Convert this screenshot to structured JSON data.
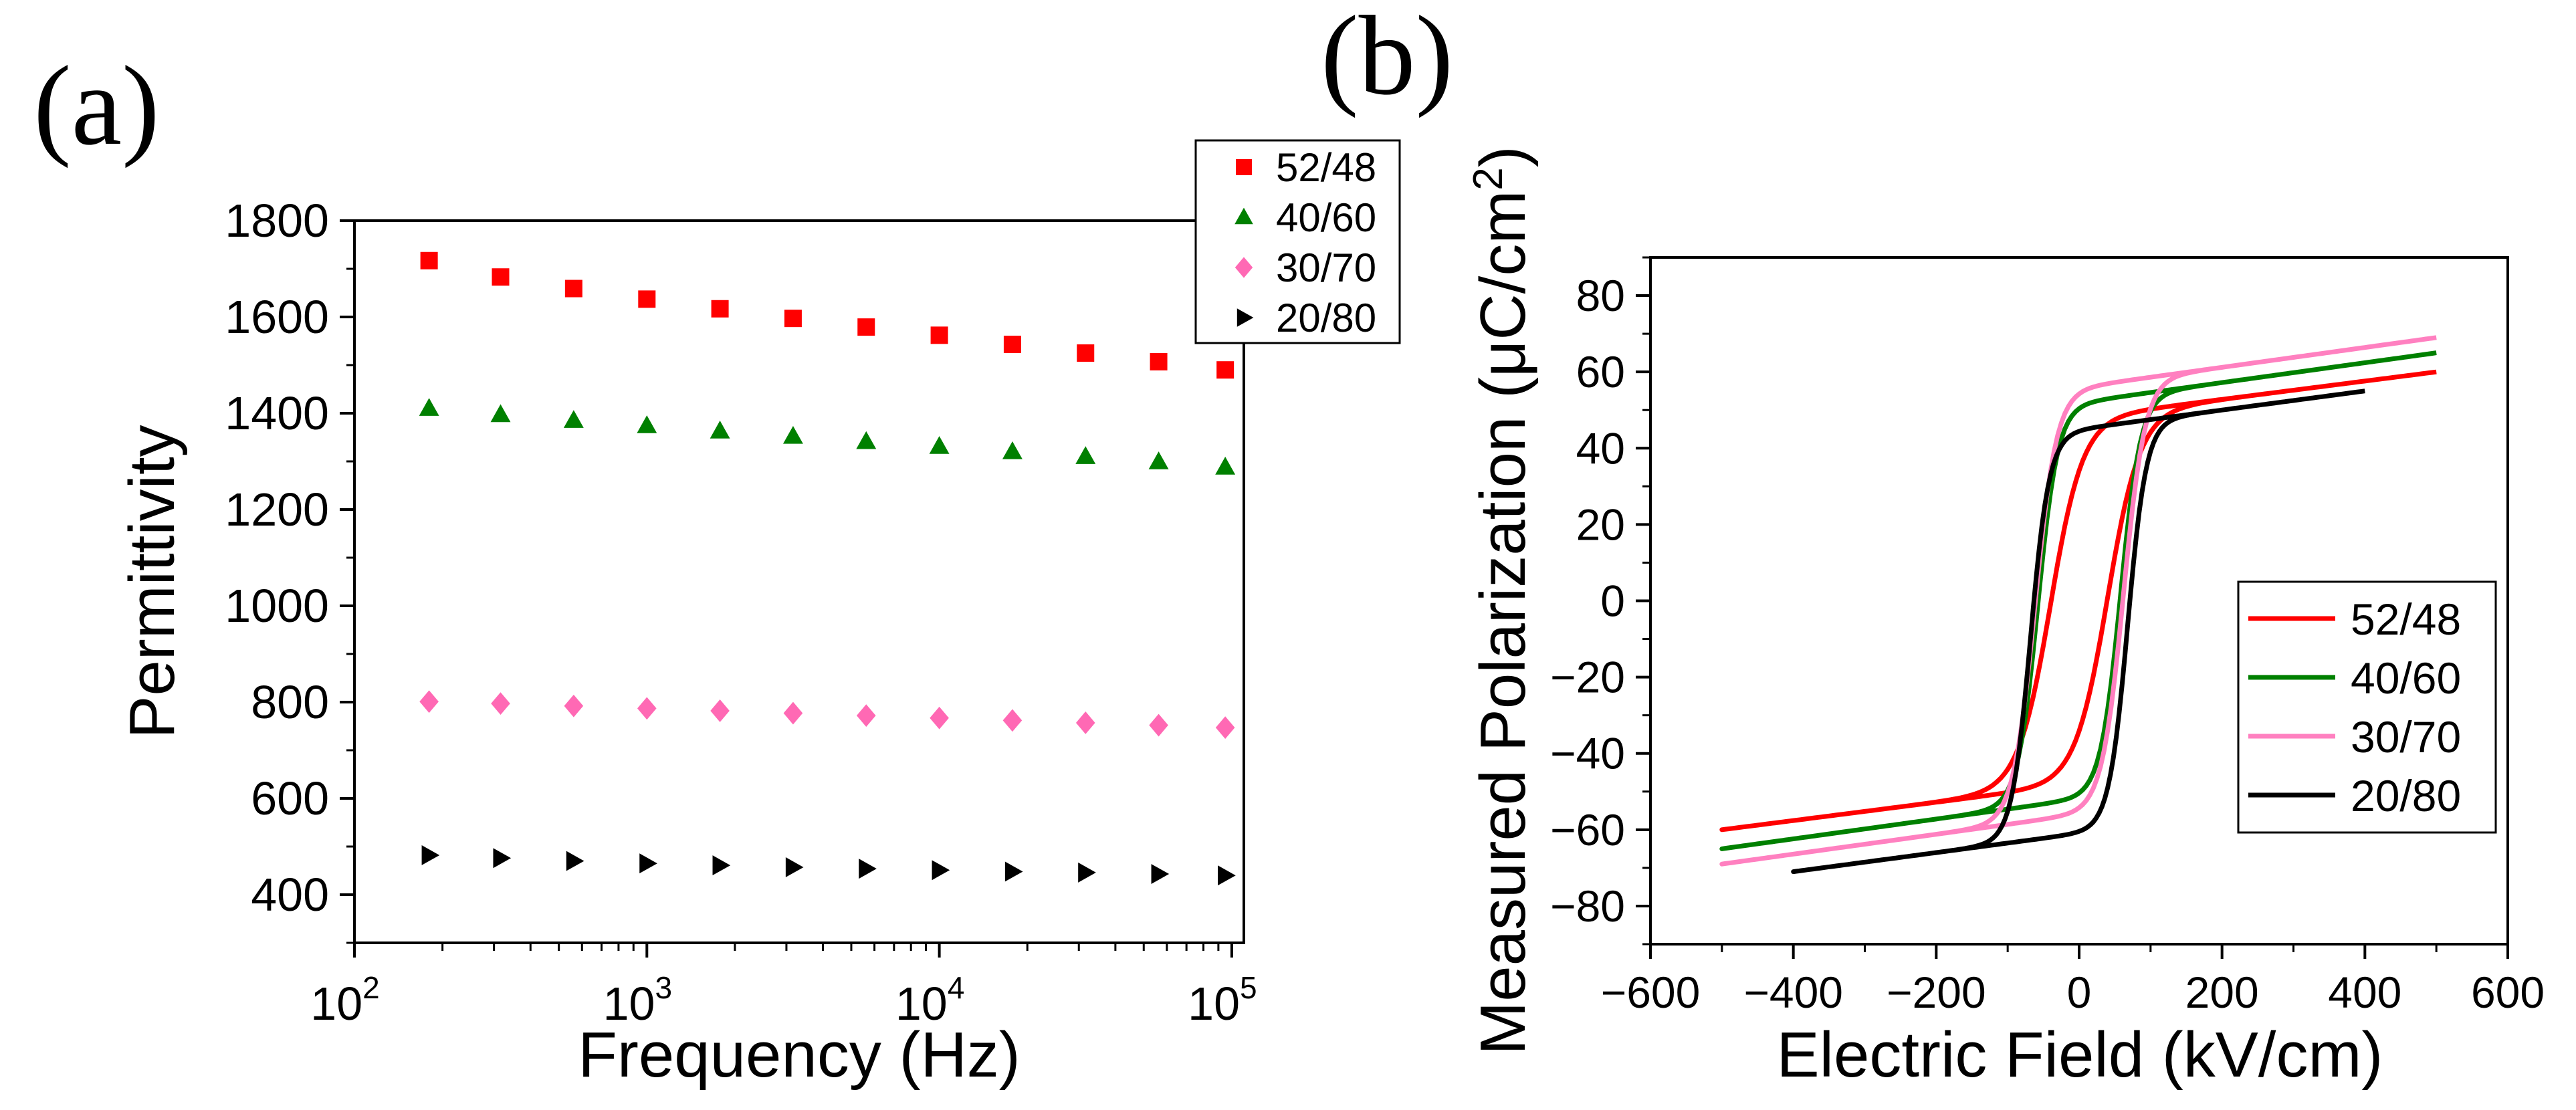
{
  "chart_data": [
    {
      "panel_label": "(a)",
      "type": "scatter",
      "xscale": "log",
      "xlabel": "Frequency (Hz)",
      "ylabel": "Permittivity",
      "xlim": [
        100,
        110000
      ],
      "ylim": [
        300,
        1800
      ],
      "xticks": [
        100,
        1000,
        10000,
        100000
      ],
      "xtick_base": "10",
      "xtick_exponents": [
        "2",
        "3",
        "4",
        "5"
      ],
      "yticks": [
        400,
        600,
        800,
        1000,
        1200,
        1400,
        1600,
        1800
      ],
      "ytick_labels": [
        "400",
        "600",
        "800",
        "1000",
        "1200",
        "1400",
        "1600",
        "1800"
      ],
      "legend_position": "top-right",
      "x": [
        180,
        316,
        562,
        1000,
        1778,
        3162,
        5623,
        10000,
        17783,
        31623,
        56234,
        95000
      ],
      "series": [
        {
          "name": "52/48",
          "marker": "square",
          "color": "#ff0000",
          "values": [
            1717,
            1683,
            1659,
            1637,
            1617,
            1597,
            1579,
            1562,
            1543,
            1525,
            1507,
            1490
          ]
        },
        {
          "name": "40/60",
          "marker": "triangle-up",
          "color": "#008000",
          "values": [
            1410,
            1397,
            1385,
            1374,
            1363,
            1352,
            1341,
            1331,
            1320,
            1310,
            1299,
            1288
          ]
        },
        {
          "name": "30/70",
          "marker": "diamond",
          "color": "#ff69b4",
          "values": [
            801,
            797,
            792,
            787,
            782,
            777,
            772,
            767,
            762,
            757,
            752,
            747
          ]
        },
        {
          "name": "20/80",
          "marker": "triangle-right",
          "color": "#000000",
          "values": [
            482,
            476,
            470,
            465,
            461,
            457,
            454,
            451,
            448,
            446,
            443,
            440
          ]
        }
      ]
    },
    {
      "panel_label": "(b)",
      "type": "line",
      "xlabel": "Electric Field (kV/cm)",
      "ylabel_prefix": "Measured Polarization (μC/cm",
      "ylabel_sup": "2",
      "ylabel_suffix": ")",
      "xlim": [
        -600,
        600
      ],
      "ylim": [
        -90,
        90
      ],
      "xticks": [
        -600,
        -400,
        -200,
        0,
        200,
        400,
        600
      ],
      "xtick_labels": [
        "−600",
        "−400",
        "−200",
        "0",
        "200",
        "400",
        "600"
      ],
      "yticks": [
        -80,
        -60,
        -40,
        -20,
        0,
        20,
        40,
        60,
        80
      ],
      "ytick_labels": [
        "−80",
        "−60",
        "−40",
        "−20",
        "0",
        "20",
        "40",
        "60",
        "80"
      ],
      "legend_position": "center-right",
      "series": [
        {
          "name": "52/48",
          "color": "#ff0000",
          "e_max": 500,
          "e_c": 40,
          "p_sat": 48,
          "slope": 0.024,
          "width": 45,
          "offset": 26,
          "bias": 0
        },
        {
          "name": "40/60",
          "color": "#008000",
          "e_max": 500,
          "e_c": 58,
          "p_sat": 52,
          "slope": 0.026,
          "width": 28,
          "offset": 20,
          "bias": 0
        },
        {
          "name": "30/70",
          "color": "#ff80c0",
          "e_max": 500,
          "e_c": 62,
          "p_sat": 56,
          "slope": 0.026,
          "width": 30,
          "offset": 24,
          "bias": 0
        },
        {
          "name": "20/80",
          "color": "#000000",
          "e_max": 400,
          "e_c": 68,
          "p_sat": 53,
          "slope": 0.025,
          "width": 26,
          "offset": 22,
          "bias": -8
        }
      ]
    }
  ]
}
